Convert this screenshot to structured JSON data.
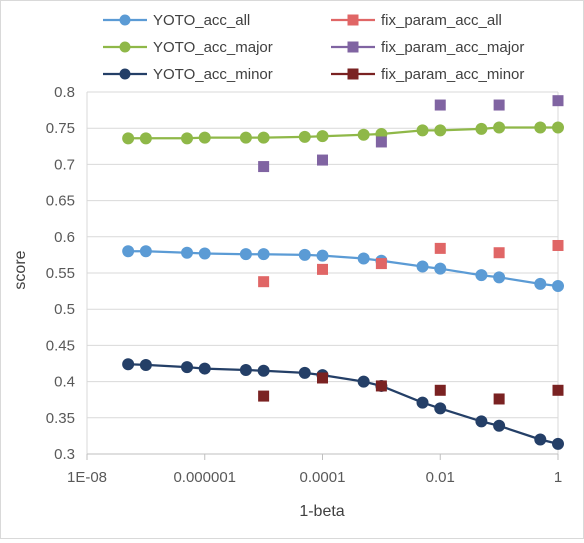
{
  "chart_data": {
    "type": "scatter",
    "xlabel": "1-beta",
    "ylabel": "score",
    "x_scale": "log10",
    "xlim": [
      1e-08,
      1
    ],
    "ylim": [
      0.3,
      0.8
    ],
    "x_tick_labels": [
      "1E-08",
      "0.000001",
      "0.0001",
      "0.01",
      "1"
    ],
    "y_tick_labels": [
      "0.3",
      "0.35",
      "0.4",
      "0.45",
      "0.5",
      "0.55",
      "0.6",
      "0.65",
      "0.7",
      "0.75",
      "0.8"
    ],
    "grid": "horizontal",
    "legend_position": "top",
    "series": [
      {
        "name": "YOTO_acc_all",
        "kind": "line-marker",
        "marker": "circle",
        "color": "#5b9bd5",
        "x": [
          5e-08,
          1e-07,
          5e-07,
          1e-06,
          5e-06,
          1e-05,
          5e-05,
          0.0001,
          0.0005,
          0.001,
          0.005,
          0.01,
          0.05,
          0.1,
          0.5,
          1
        ],
        "y": [
          0.58,
          0.58,
          0.578,
          0.577,
          0.576,
          0.576,
          0.575,
          0.574,
          0.57,
          0.567,
          0.559,
          0.556,
          0.547,
          0.544,
          0.535,
          0.532
        ]
      },
      {
        "name": "fix_param_acc_all",
        "kind": "marker",
        "marker": "square",
        "color": "#e06666",
        "x": [
          1e-05,
          0.0001,
          0.001,
          0.01,
          0.1,
          1
        ],
        "y": [
          0.538,
          0.555,
          0.563,
          0.584,
          0.578,
          0.588
        ]
      },
      {
        "name": "YOTO_acc_major",
        "kind": "line-marker",
        "marker": "circle",
        "color": "#8fb848",
        "x": [
          5e-08,
          1e-07,
          5e-07,
          1e-06,
          5e-06,
          1e-05,
          5e-05,
          0.0001,
          0.0005,
          0.001,
          0.005,
          0.01,
          0.05,
          0.1,
          0.5,
          1
        ],
        "y": [
          0.736,
          0.736,
          0.736,
          0.737,
          0.737,
          0.737,
          0.738,
          0.739,
          0.741,
          0.742,
          0.747,
          0.747,
          0.749,
          0.751,
          0.751,
          0.751
        ]
      },
      {
        "name": "fix_param_acc_major",
        "kind": "marker",
        "marker": "square",
        "color": "#8064a2",
        "x": [
          1e-05,
          0.0001,
          0.001,
          0.01,
          0.1,
          1
        ],
        "y": [
          0.697,
          0.706,
          0.731,
          0.782,
          0.782,
          0.788
        ]
      },
      {
        "name": "YOTO_acc_minor",
        "kind": "line-marker",
        "marker": "circle",
        "color": "#243f67",
        "x": [
          5e-08,
          1e-07,
          5e-07,
          1e-06,
          5e-06,
          1e-05,
          5e-05,
          0.0001,
          0.0005,
          0.001,
          0.005,
          0.01,
          0.05,
          0.1,
          0.5,
          1
        ],
        "y": [
          0.424,
          0.423,
          0.42,
          0.418,
          0.416,
          0.415,
          0.412,
          0.409,
          0.4,
          0.394,
          0.371,
          0.363,
          0.345,
          0.339,
          0.32,
          0.314
        ]
      },
      {
        "name": "fix_param_acc_minor",
        "kind": "marker",
        "marker": "square",
        "color": "#7a2222",
        "x": [
          1e-05,
          0.0001,
          0.001,
          0.01,
          0.1,
          1
        ],
        "y": [
          0.38,
          0.405,
          0.394,
          0.388,
          0.376,
          0.388
        ]
      }
    ]
  }
}
